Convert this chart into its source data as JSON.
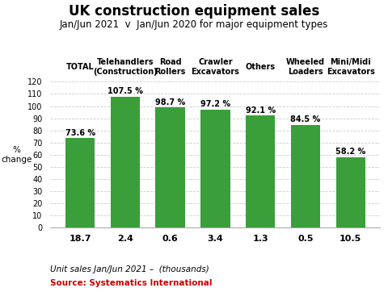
{
  "title_line1": "UK construction equipment sales",
  "title_line2": "Jan/Jun 2021  v  Jan/Jun 2020 for major equipment types",
  "categories": [
    "TOTAL",
    "Telehandlers\n(Construction)",
    "Road\nRollers",
    "Crawler\nExcavators",
    "Others",
    "Wheeled\nLoaders",
    "Mini/Midi\nExcavators"
  ],
  "values": [
    73.6,
    107.5,
    98.7,
    97.2,
    92.1,
    84.5,
    58.2
  ],
  "unit_sales": [
    "18.7",
    "2.4",
    "0.6",
    "3.4",
    "1.3",
    "0.5",
    "10.5"
  ],
  "pct_labels": [
    "73.6 %",
    "107.5 %",
    "98.7 %",
    "97.2 %",
    "92.1 %",
    "84.5 %",
    "58.2 %"
  ],
  "bar_color": "#3a9e3a",
  "ylabel": "%\nchange",
  "ylim": [
    0,
    120
  ],
  "yticks": [
    0,
    10,
    20,
    30,
    40,
    50,
    60,
    70,
    80,
    90,
    100,
    110,
    120
  ],
  "footer_line1": "Unit sales Jan/Jun 2021 –  (thousands)",
  "footer_line2": "Source: Systematics International",
  "background_color": "#ffffff",
  "plot_bg_color": "#ffffff",
  "header_bg_color": "#ffffff",
  "unit_bar_bg": "#d4d4d4",
  "title_fontsize": 12,
  "subtitle_fontsize": 8.5,
  "cat_label_fontsize": 7,
  "bar_label_fontsize": 7,
  "unit_fontsize": 8,
  "footer_fontsize": 7,
  "ylabel_fontsize": 7.5
}
